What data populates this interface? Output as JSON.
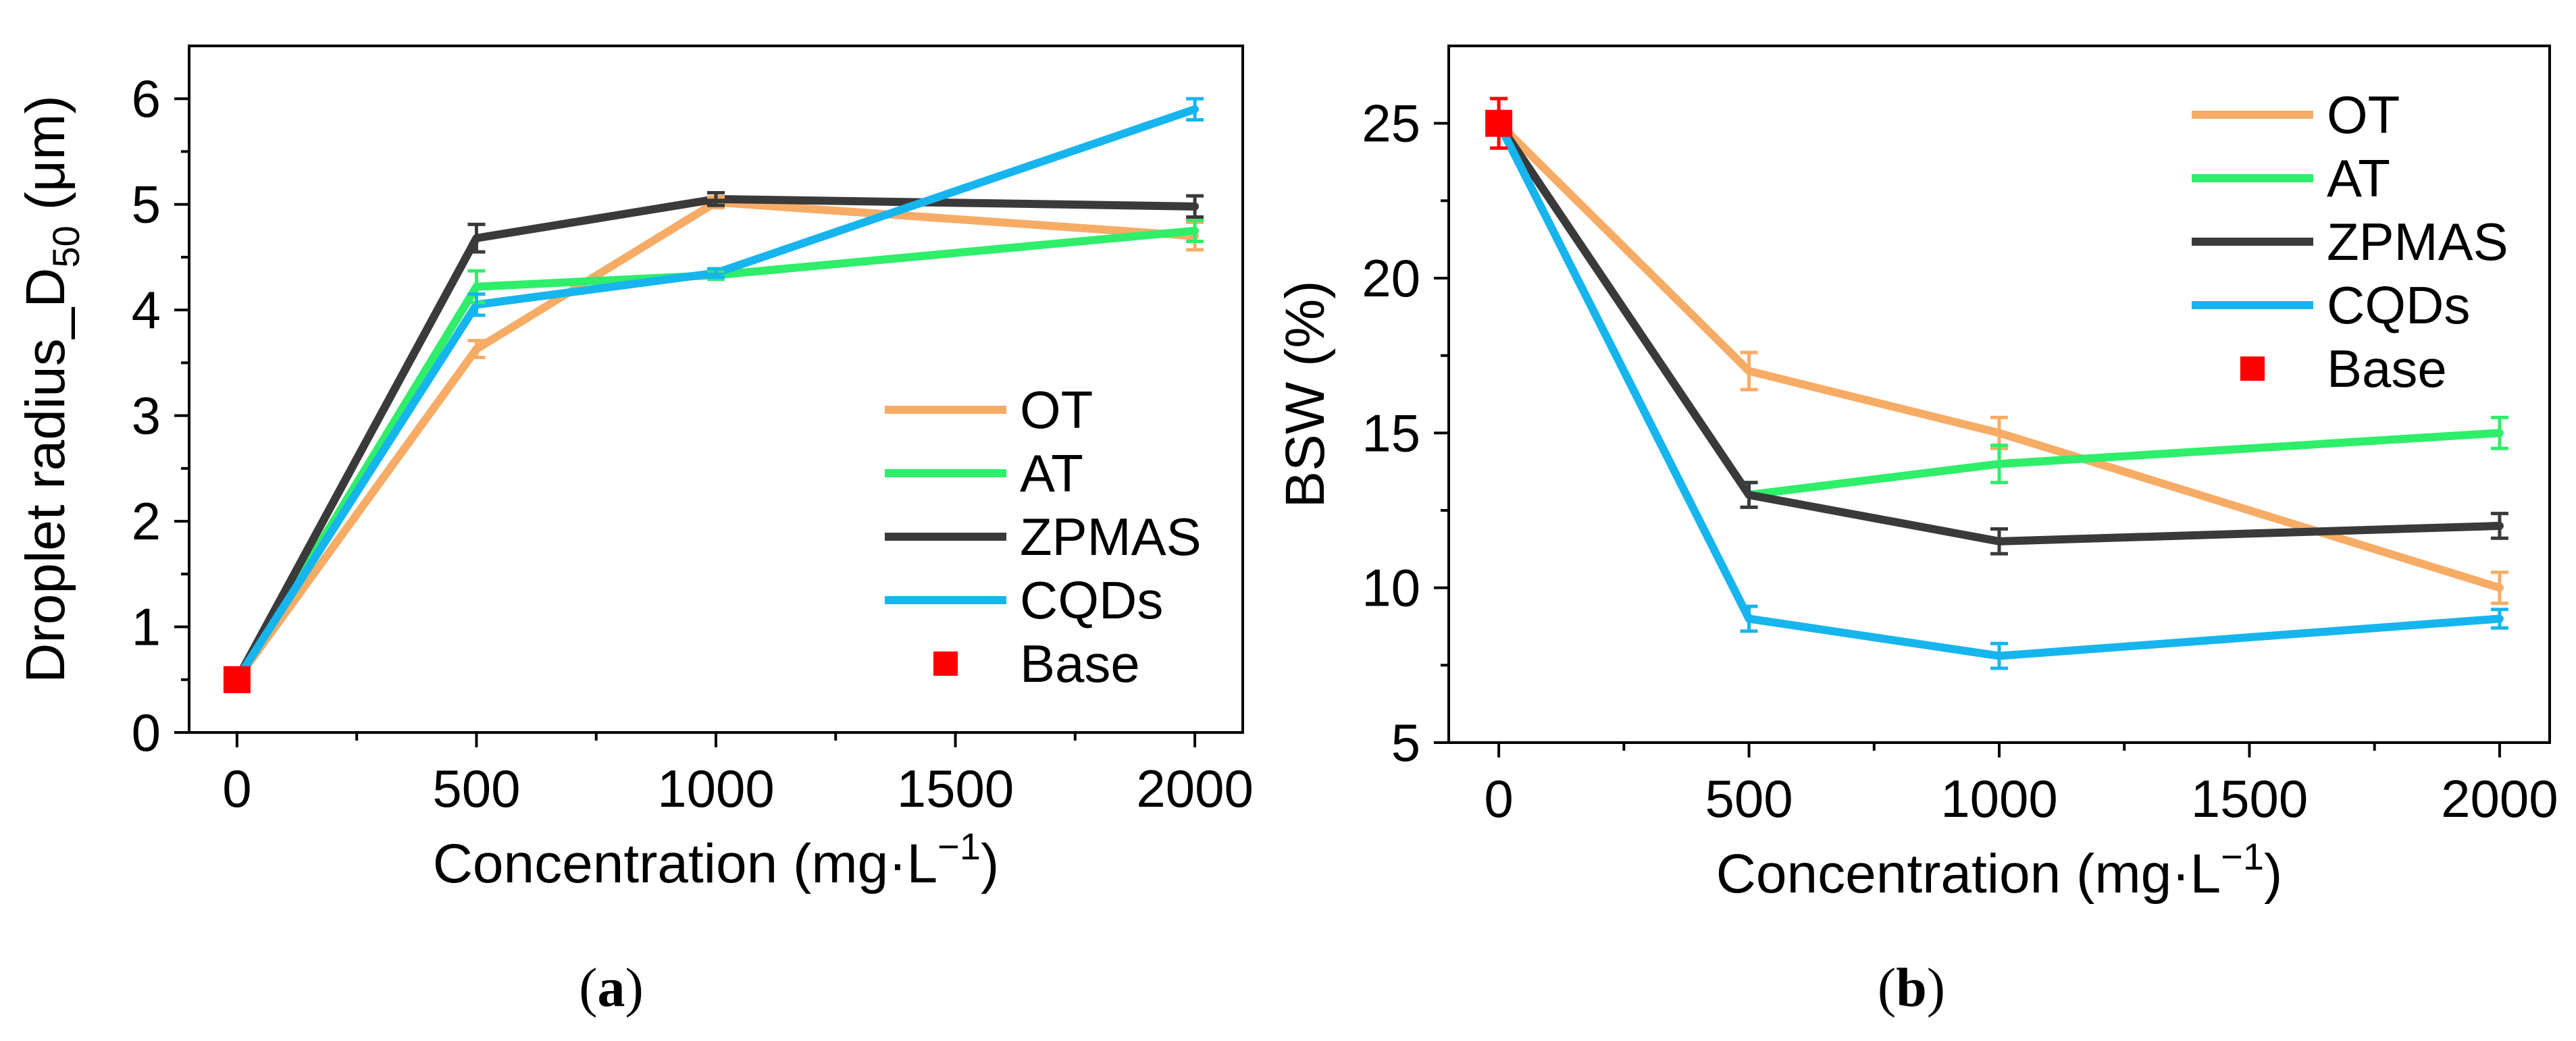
{
  "colors": {
    "OT": "#F7AC66",
    "AT": "#2EEE6A",
    "ZPMAS": "#3A3A3A",
    "CQDs": "#17B5EE",
    "Base": "#FF0000",
    "axis": "#000000"
  },
  "panels": [
    {
      "label_open": "(",
      "label_letter": "a",
      "label_close": ")"
    },
    {
      "label_open": "(",
      "label_letter": "b",
      "label_close": ")"
    }
  ],
  "chart_data": [
    {
      "type": "line",
      "panel": "a",
      "title": "",
      "xlabel": "Concentration (mg·L",
      "xlabel_sup": "−1",
      "xlabel_close": ")",
      "ylabel_main": "Droplet radius_D",
      "ylabel_sub": "50",
      "ylabel_unit": " (μm)",
      "xlim": [
        -100,
        2100
      ],
      "ylim": [
        0,
        6.5
      ],
      "xticks": [
        0,
        500,
        1000,
        1500,
        2000
      ],
      "xtick_labels": [
        "0",
        "500",
        "1000",
        "1500",
        "2000"
      ],
      "yticks": [
        0,
        1,
        2,
        3,
        4,
        5,
        6
      ],
      "ytick_labels": [
        "0",
        "1",
        "2",
        "3",
        "4",
        "5",
        "6"
      ],
      "x": [
        0,
        500,
        1000,
        2000
      ],
      "legend_position": "bottom-right",
      "series": [
        {
          "name": "OT",
          "values": [
            0.5,
            3.63,
            5.02,
            4.7
          ],
          "errors": [
            0.05,
            0.08,
            0.05,
            0.13
          ]
        },
        {
          "name": "AT",
          "values": [
            0.5,
            4.22,
            4.33,
            4.75
          ],
          "errors": [
            0.05,
            0.15,
            0.04,
            0.1
          ]
        },
        {
          "name": "ZPMAS",
          "values": [
            0.5,
            4.68,
            5.05,
            4.98
          ],
          "errors": [
            0.05,
            0.13,
            0.06,
            0.1
          ]
        },
        {
          "name": "CQDs",
          "values": [
            0.5,
            4.05,
            4.35,
            5.9
          ],
          "errors": [
            0.05,
            0.1,
            0.04,
            0.1
          ]
        }
      ],
      "base": {
        "name": "Base",
        "x": 0,
        "value": 0.5,
        "error": 0.1
      }
    },
    {
      "type": "line",
      "panel": "b",
      "title": "",
      "xlabel": "Concentration (mg·L",
      "xlabel_sup": "−1",
      "xlabel_close": ")",
      "ylabel_main": "BSW (%)",
      "xlim": [
        -100,
        2100
      ],
      "ylim": [
        5,
        27.5
      ],
      "xticks": [
        0,
        500,
        1000,
        1500,
        2000
      ],
      "xtick_labels": [
        "0",
        "500",
        "1000",
        "1500",
        "2000"
      ],
      "yticks": [
        5,
        10,
        15,
        20,
        25
      ],
      "ytick_labels": [
        "5",
        "10",
        "15",
        "20",
        "25"
      ],
      "x": [
        0,
        500,
        1000,
        2000
      ],
      "legend_position": "top-right",
      "series": [
        {
          "name": "OT",
          "values": [
            25,
            17,
            15,
            10
          ],
          "errors": [
            0.8,
            0.6,
            0.5,
            0.5
          ]
        },
        {
          "name": "AT",
          "values": [
            25,
            13,
            14,
            15
          ],
          "errors": [
            0.8,
            0.4,
            0.6,
            0.5
          ]
        },
        {
          "name": "ZPMAS",
          "values": [
            25,
            13,
            11.5,
            12
          ],
          "errors": [
            0.8,
            0.4,
            0.4,
            0.4
          ]
        },
        {
          "name": "CQDs",
          "values": [
            25,
            9,
            7.8,
            9
          ],
          "errors": [
            0.8,
            0.4,
            0.4,
            0.3
          ]
        }
      ],
      "base": {
        "name": "Base",
        "x": 0,
        "value": 25,
        "error": 0.8
      }
    }
  ]
}
